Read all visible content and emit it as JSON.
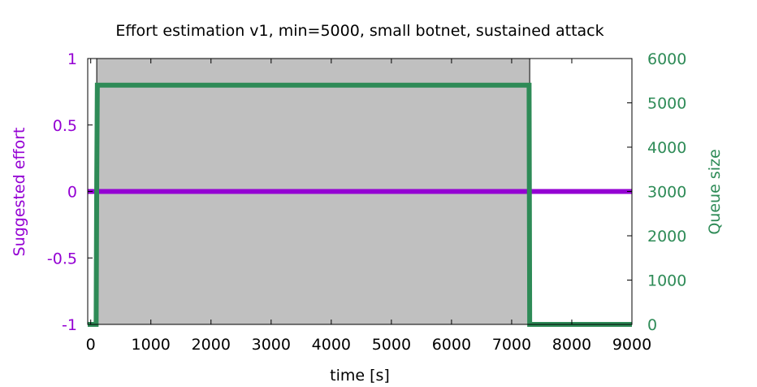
{
  "chart_data": {
    "type": "line",
    "title": "Effort estimation v1, min=5000, small botnet, sustained attack",
    "xlabel": "time [s]",
    "ylabel": "Suggested effort",
    "y2label": "Queue size",
    "xlim": [
      -50,
      9000
    ],
    "ylim": [
      -1,
      1
    ],
    "y2lim": [
      0,
      6000
    ],
    "x_ticks": [
      "0",
      "1000",
      "2000",
      "3000",
      "4000",
      "5000",
      "6000",
      "7000",
      "8000",
      "9000"
    ],
    "y_ticks": [
      "1",
      "0.5",
      "0",
      "-0.5",
      "-1"
    ],
    "y2_ticks": [
      "6000",
      "5000",
      "4000",
      "3000",
      "2000",
      "1000",
      "0"
    ],
    "attack_interval": {
      "start": 100,
      "end": 7300,
      "fill": "#c0c0c0"
    },
    "series": [
      {
        "axis": "y",
        "color": "#9400d3",
        "points": [
          [
            -50,
            0
          ],
          [
            9000,
            0
          ]
        ]
      },
      {
        "axis": "y2",
        "color": "#2e8b57",
        "points": [
          [
            -50,
            0
          ],
          [
            90,
            0
          ],
          [
            100,
            3250
          ],
          [
            110,
            5400
          ],
          [
            7290,
            5400
          ],
          [
            7300,
            0
          ],
          [
            9000,
            0
          ]
        ]
      }
    ],
    "colors": {
      "y_axis": "#9400d3",
      "y2_axis": "#2e8b57"
    }
  }
}
